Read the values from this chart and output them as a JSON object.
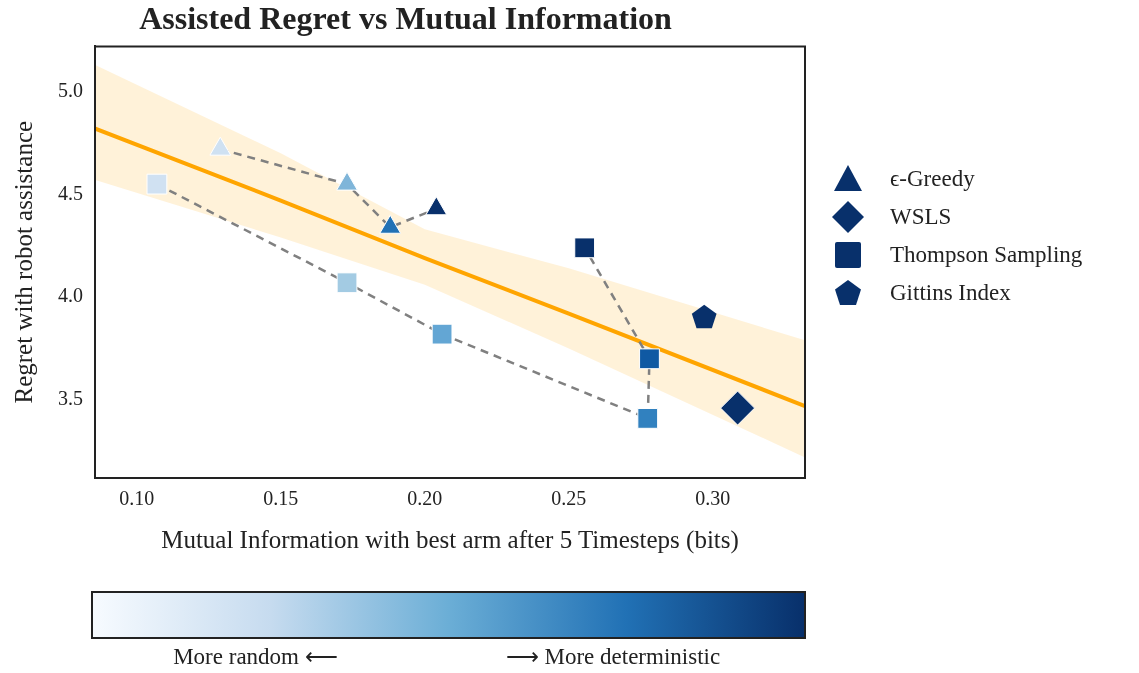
{
  "chart_data": {
    "type": "scatter",
    "title": "Assisted Regret vs Mutual Information",
    "xlabel": "Mutual Information with best arm after 5 Timesteps (bits)",
    "ylabel": "Regret with robot assistance",
    "xlim": [
      0.0855,
      0.332
    ],
    "ylim": [
      3.12,
      5.22
    ],
    "xticks": [
      {
        "value": 0.1,
        "label": "0.10"
      },
      {
        "value": 0.15,
        "label": "0.15"
      },
      {
        "value": 0.2,
        "label": "0.20"
      },
      {
        "value": 0.25,
        "label": "0.25"
      },
      {
        "value": 0.3,
        "label": "0.30"
      }
    ],
    "yticks": [
      {
        "value": 3.5,
        "label": "3.5"
      },
      {
        "value": 4,
        "label": "4.0"
      },
      {
        "value": 4.5,
        "label": "4.5"
      },
      {
        "value": 5,
        "label": "5.0"
      }
    ],
    "grid": false,
    "legend": "right",
    "annotations": [
      "More random ⟵",
      "⟶ More deterministic"
    ],
    "series": [
      {
        "name": "ϵ-Greedy",
        "type": "line",
        "marker": "triangle",
        "line_style": "dashed",
        "color": "#808080",
        "x": [
          0.129,
          0.173,
          0.188,
          0.204
        ],
        "values": [
          4.72,
          4.55,
          4.34,
          4.43
        ],
        "colors": [
          "#cfe1f2",
          "#7fb5d9",
          "#2171b5",
          "#08306b"
        ]
      },
      {
        "name": "WSLS",
        "marker": "diamond",
        "color": "#08306b",
        "x": [
          0.3086
        ],
        "values": [
          3.46
        ]
      },
      {
        "name": "Thompson Sampling",
        "type": "line",
        "marker": "square",
        "line_style": "dashed",
        "color": "#808080",
        "x": [
          0.107,
          0.173,
          0.206,
          0.2774,
          0.278,
          0.2555
        ],
        "values": [
          4.55,
          4.07,
          3.82,
          3.41,
          3.7,
          4.24
        ],
        "colors": [
          "#d0e1f2",
          "#a3cbe3",
          "#63a6d4",
          "#3181bf",
          "#0f59a3",
          "#08306b"
        ]
      },
      {
        "name": "Gittins Index",
        "color": "#08306b",
        "x": [
          0.297
        ],
        "values": [
          3.9
        ]
      },
      {
        "type": "line",
        "marker": "none",
        "color": "#ffa500",
        "x": [
          0.0856,
          0.15,
          0.2,
          0.25,
          0.332
        ],
        "values": [
          4.82,
          4.47,
          4.19,
          3.92,
          3.47
        ],
        "lower": [
          4.57,
          4.29,
          4.06,
          3.75,
          3.22
        ],
        "upper": [
          5.13,
          4.7,
          4.33,
          4.14,
          3.79
        ]
      }
    ]
  }
}
